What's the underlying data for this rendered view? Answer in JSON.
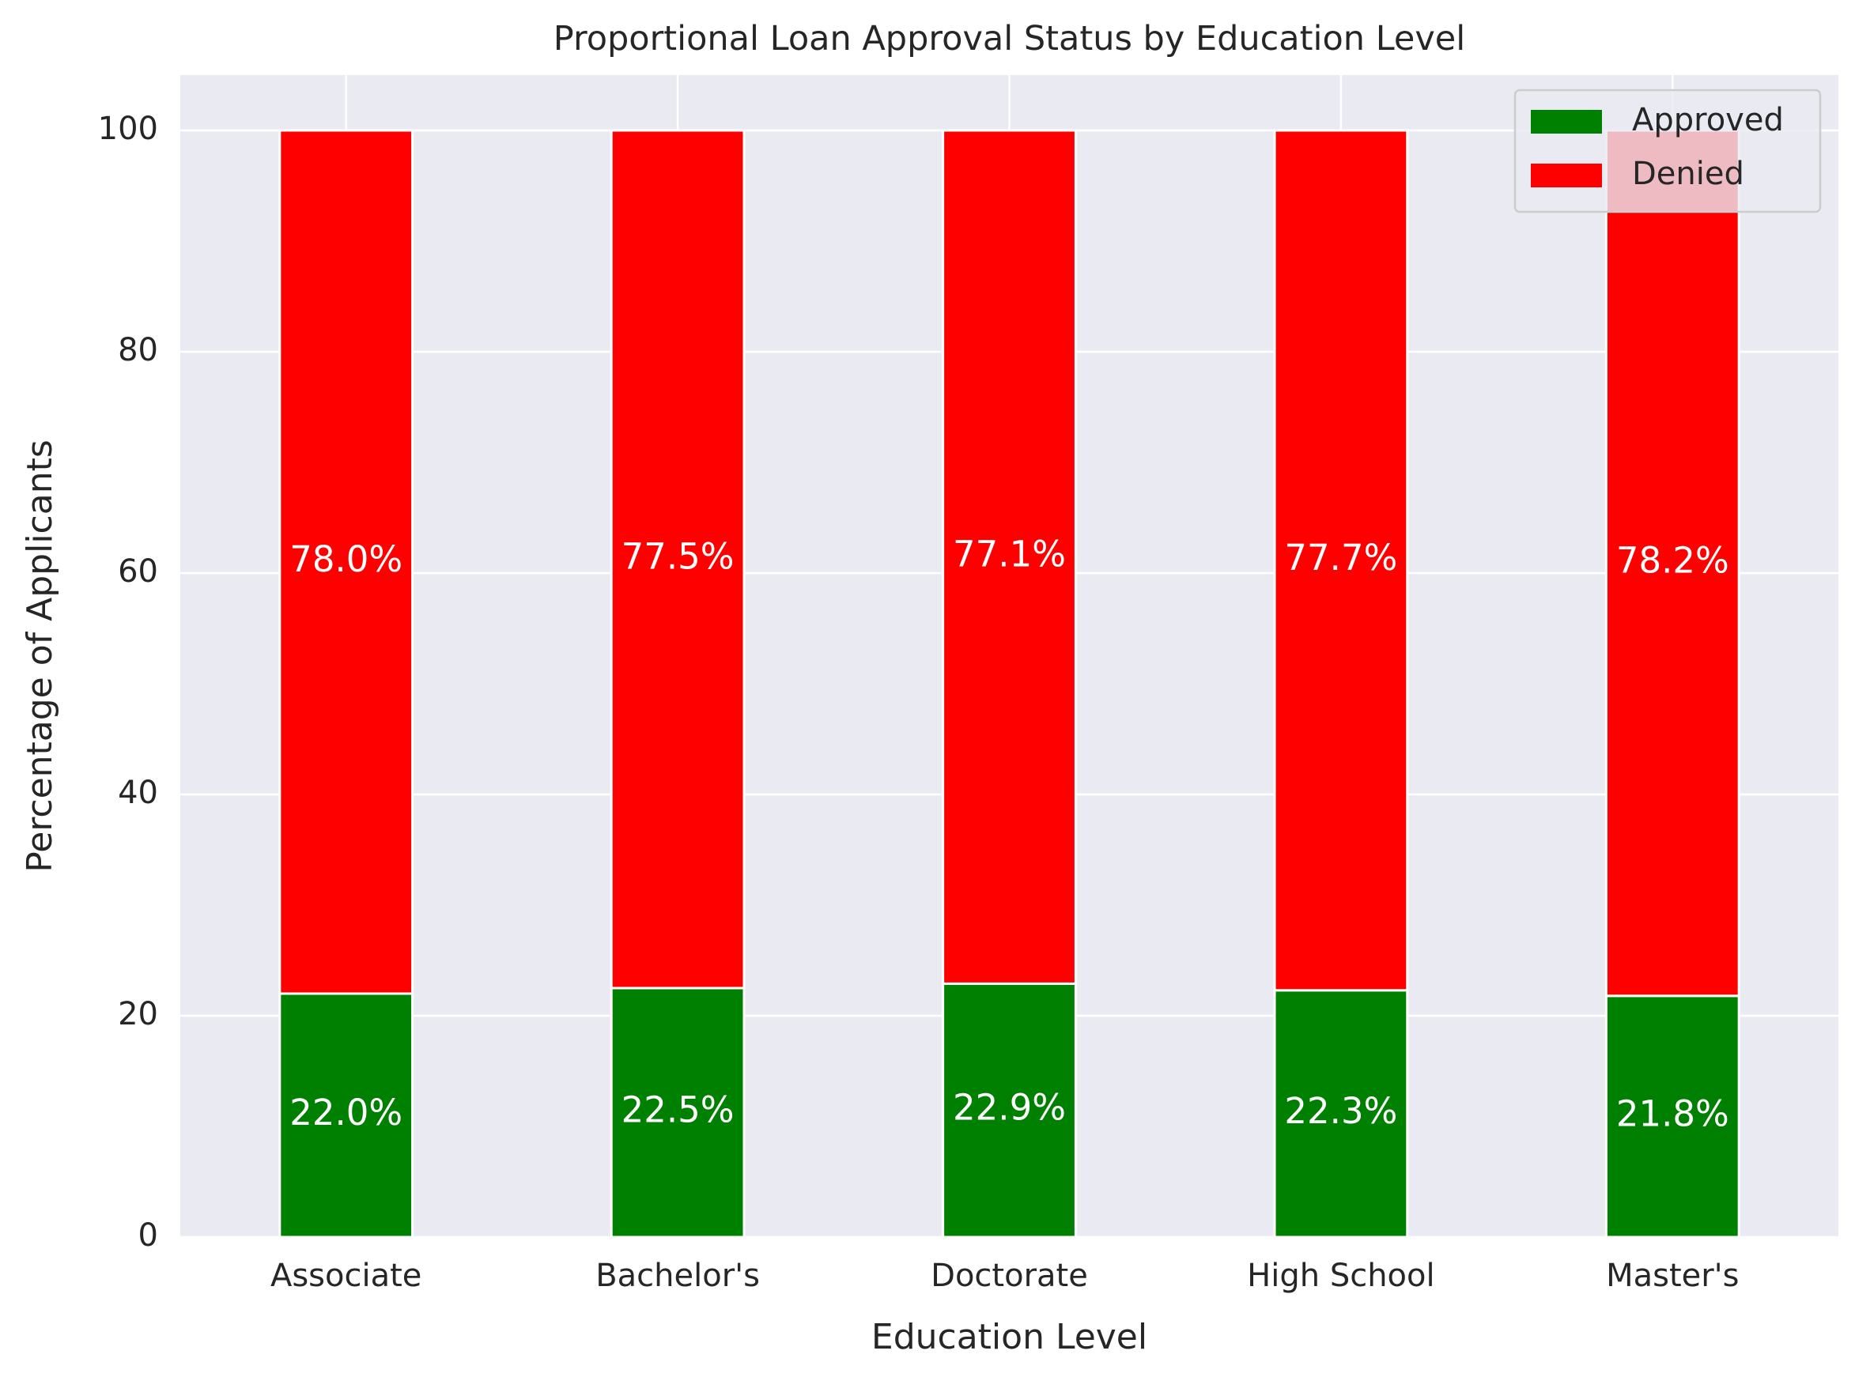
{
  "chart_data": {
    "type": "bar",
    "stacked": true,
    "title": "Proportional Loan Approval Status by Education Level",
    "xlabel": "Education Level",
    "ylabel": "Percentage of Applicants",
    "ylim": [
      0,
      105
    ],
    "yticks": [
      0,
      20,
      40,
      60,
      80,
      100
    ],
    "grid": true,
    "legend_position": "top-right",
    "categories": [
      "Associate",
      "Bachelor's",
      "Doctorate",
      "High School",
      "Master's"
    ],
    "series": [
      {
        "name": "Approved",
        "color": "#008000",
        "values": [
          22.0,
          22.5,
          22.9,
          22.3,
          21.8
        ],
        "labels": [
          "22.0%",
          "22.5%",
          "22.9%",
          "22.3%",
          "21.8%"
        ]
      },
      {
        "name": "Denied",
        "color": "#ff0000",
        "values": [
          78.0,
          77.5,
          77.1,
          77.7,
          78.2
        ],
        "labels": [
          "78.0%",
          "77.5%",
          "77.1%",
          "77.7%",
          "78.2%"
        ]
      }
    ],
    "colors": {
      "plot_background": "#eaeaf2",
      "grid": "#ffffff",
      "text": "#262626",
      "data_label": "#ffffff"
    }
  }
}
